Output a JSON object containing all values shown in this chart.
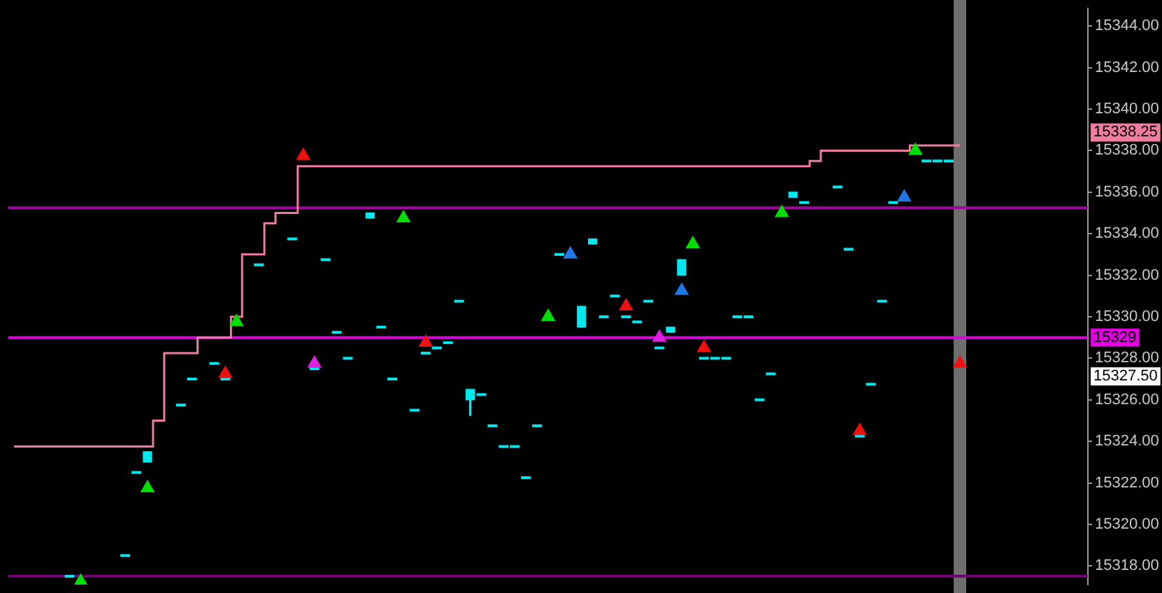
{
  "chart_data": {
    "type": "candlestick",
    "color": "#00e8f0",
    "tick_labels": "y",
    "legend": false,
    "grid": false,
    "categories": [
      null,
      null,
      null,
      null,
      null,
      null,
      null,
      null,
      null,
      null,
      null,
      null,
      null,
      null,
      null,
      null,
      null,
      null,
      null,
      null,
      null,
      null,
      null,
      null,
      null,
      null,
      null,
      null,
      null,
      null,
      null,
      null,
      null,
      null,
      null,
      null,
      null,
      null,
      null,
      null,
      null,
      null,
      null,
      null,
      null,
      null,
      null,
      null,
      null,
      null,
      null,
      null,
      null,
      null,
      null,
      null,
      null,
      null,
      null,
      null,
      null,
      null,
      null,
      null,
      null,
      null,
      null,
      null,
      null,
      null,
      null,
      null,
      null,
      null,
      null,
      null,
      null,
      null,
      null,
      null,
      null,
      null,
      null,
      null,
      null,
      null,
      null,
      null,
      null,
      null,
      null,
      null,
      null,
      null,
      null,
      null,
      null
    ],
    "ohlc": [
      null,
      null,
      null,
      null,
      null,
      [
        15317.5,
        15317.5,
        15317.5,
        15317.5
      ],
      null,
      null,
      null,
      null,
      [
        15318.5,
        15318.5,
        15318.5,
        15318.5
      ],
      [
        15322.5,
        15322.5,
        15322.5,
        15322.5
      ],
      [
        15323,
        15323.5,
        15323,
        15323.5
      ],
      null,
      null,
      [
        15325.75,
        15325.75,
        15325.75,
        15325.75
      ],
      [
        15327,
        15327,
        15327,
        15327
      ],
      null,
      [
        15327.75,
        15327.75,
        15327.75,
        15327.75
      ],
      [
        15327,
        15327,
        15327,
        15327
      ],
      null,
      null,
      [
        15332.5,
        15332.5,
        15332.5,
        15332.5
      ],
      null,
      null,
      [
        15333.75,
        15333.75,
        15333.75,
        15333.75
      ],
      null,
      [
        15327.5,
        15327.5,
        15327.5,
        15327.5
      ],
      [
        15332.75,
        15332.75,
        15332.75,
        15332.75
      ],
      [
        15329.25,
        15329.25,
        15329.25,
        15329.25
      ],
      [
        15328,
        15328,
        15328,
        15328
      ],
      null,
      [
        15334.75,
        15335,
        15334.75,
        15335
      ],
      [
        15329.5,
        15329.5,
        15329.5,
        15329.5
      ],
      [
        15327,
        15327,
        15327,
        15327
      ],
      null,
      [
        15325.5,
        15325.5,
        15325.5,
        15325.5
      ],
      [
        15328.25,
        15328.25,
        15328.25,
        15328.25
      ],
      [
        15328.5,
        15328.5,
        15328.5,
        15328.5
      ],
      [
        15328.75,
        15328.75,
        15328.75,
        15328.75
      ],
      [
        15330.75,
        15330.75,
        15330.75,
        15330.75
      ],
      [
        15326,
        15326.5,
        15325.25,
        15326.5
      ],
      [
        15326.25,
        15326.25,
        15326.25,
        15326.25
      ],
      [
        15324.75,
        15324.75,
        15324.75,
        15324.75
      ],
      [
        15323.75,
        15323.75,
        15323.75,
        15323.75
      ],
      [
        15323.75,
        15323.75,
        15323.75,
        15323.75
      ],
      [
        15322.25,
        15322.25,
        15322.25,
        15322.25
      ],
      [
        15324.75,
        15324.75,
        15324.75,
        15324.75
      ],
      null,
      [
        15333,
        15333,
        15333,
        15333
      ],
      null,
      [
        15329.5,
        15330.5,
        15329.5,
        15330.5
      ],
      [
        15333.5,
        15333.75,
        15333.5,
        15333.75
      ],
      [
        15330,
        15330,
        15330,
        15330
      ],
      [
        15331,
        15331,
        15331,
        15331
      ],
      [
        15330,
        15330,
        15330,
        15330
      ],
      [
        15329.75,
        15329.75,
        15329.75,
        15329.75
      ],
      [
        15330.75,
        15330.75,
        15330.75,
        15330.75
      ],
      [
        15328.5,
        15328.5,
        15328.5,
        15328.5
      ],
      [
        15329.25,
        15329.5,
        15329.25,
        15329.5
      ],
      [
        15332,
        15332.75,
        15332,
        15332.75
      ],
      null,
      [
        15328,
        15328,
        15328,
        15328
      ],
      [
        15328,
        15328,
        15328,
        15328
      ],
      [
        15328,
        15328,
        15328,
        15328
      ],
      [
        15330,
        15330,
        15330,
        15330
      ],
      [
        15330,
        15330,
        15330,
        15330
      ],
      [
        15326,
        15326,
        15326,
        15326
      ],
      [
        15327.25,
        15327.25,
        15327.25,
        15327.25
      ],
      null,
      [
        15335.75,
        15336,
        15335.75,
        15336
      ],
      [
        15335.5,
        15335.5,
        15335.5,
        15335.5
      ],
      null,
      null,
      [
        15336.25,
        15336.25,
        15336.25,
        15336.25
      ],
      [
        15333.25,
        15333.25,
        15333.25,
        15333.25
      ],
      [
        15324.25,
        15324.25,
        15324.25,
        15324.25
      ],
      [
        15326.75,
        15326.75,
        15326.75,
        15326.75
      ],
      [
        15330.75,
        15330.75,
        15330.75,
        15330.75
      ],
      [
        15335.5,
        15335.5,
        15335.5,
        15335.5
      ],
      null,
      null,
      [
        15337.5,
        15337.5,
        15337.5,
        15337.5
      ],
      [
        15337.5,
        15337.5,
        15337.5,
        15337.5
      ],
      [
        15337.5,
        15337.5,
        15337.5,
        15337.5
      ],
      null,
      null,
      null,
      null,
      null,
      null,
      null,
      null,
      null,
      null,
      null,
      null
    ],
    "series": [
      {
        "type": "step",
        "color": "#f07ca0",
        "values": [
          15323.75,
          15323.75,
          15323.75,
          15323.75,
          15323.75,
          15323.75,
          15323.75,
          15323.75,
          15323.75,
          15323.75,
          15323.75,
          15323.75,
          15323.75,
          15325,
          15328.25,
          15328.25,
          15328.25,
          15329,
          15329,
          15329,
          15330,
          15333,
          15333,
          15334.5,
          15335,
          15335,
          15337.25,
          15337.25,
          15337.25,
          15337.25,
          15337.25,
          15337.25,
          15337.25,
          15337.25,
          15337.25,
          15337.25,
          15337.25,
          15337.25,
          15337.25,
          15337.25,
          15337.25,
          15337.25,
          15337.25,
          15337.25,
          15337.25,
          15337.25,
          15337.25,
          15337.25,
          15337.25,
          15337.25,
          15337.25,
          15337.25,
          15337.25,
          15337.25,
          15337.25,
          15337.25,
          15337.25,
          15337.25,
          15337.25,
          15337.25,
          15337.25,
          15337.25,
          15337.25,
          15337.25,
          15337.25,
          15337.25,
          15337.25,
          15337.25,
          15337.25,
          15337.25,
          15337.25,
          15337.25,
          15337.5,
          15338,
          15338,
          15338,
          15338,
          15338,
          15338,
          15338,
          15338,
          15338.25,
          15338.25,
          15338.25,
          15338.25,
          15338.25,
          null,
          null,
          null,
          null,
          null,
          null,
          null,
          null,
          null,
          null,
          null
        ]
      },
      {
        "type": "scatter",
        "marker": "triangle",
        "color": "#00e000",
        "values": [
          null,
          null,
          null,
          null,
          null,
          null,
          15317.25,
          null,
          null,
          null,
          null,
          null,
          15321.75,
          null,
          null,
          null,
          null,
          null,
          null,
          null,
          15329.75,
          null,
          null,
          null,
          null,
          null,
          null,
          null,
          null,
          null,
          null,
          null,
          null,
          null,
          null,
          15334.75,
          null,
          null,
          null,
          null,
          null,
          null,
          null,
          null,
          null,
          null,
          null,
          null,
          15330,
          null,
          null,
          null,
          null,
          null,
          null,
          null,
          null,
          null,
          null,
          null,
          null,
          15333.5,
          null,
          null,
          null,
          null,
          null,
          null,
          null,
          15335,
          null,
          null,
          null,
          null,
          null,
          null,
          null,
          null,
          null,
          null,
          null,
          15338,
          null,
          null,
          null,
          null,
          null,
          null,
          null,
          null,
          null,
          null,
          null,
          null,
          null,
          null,
          null
        ]
      },
      {
        "type": "scatter",
        "marker": "triangle",
        "color": "#1e78e6",
        "values": [
          null,
          null,
          null,
          null,
          null,
          null,
          null,
          null,
          null,
          null,
          null,
          null,
          null,
          null,
          null,
          null,
          null,
          null,
          null,
          null,
          null,
          null,
          null,
          null,
          null,
          null,
          null,
          null,
          null,
          null,
          null,
          null,
          null,
          null,
          null,
          null,
          null,
          null,
          null,
          null,
          null,
          null,
          null,
          null,
          null,
          null,
          null,
          null,
          null,
          null,
          15333,
          null,
          null,
          null,
          null,
          null,
          null,
          null,
          null,
          null,
          15331.25,
          null,
          null,
          null,
          null,
          null,
          null,
          null,
          null,
          null,
          null,
          null,
          null,
          null,
          null,
          null,
          null,
          null,
          null,
          null,
          15335.75,
          null,
          null,
          null,
          null,
          null,
          null,
          null,
          null,
          null,
          null,
          null,
          null,
          null,
          null,
          null,
          null
        ]
      },
      {
        "type": "scatter",
        "marker": "triangle",
        "color": "#f01010",
        "values": [
          null,
          null,
          null,
          null,
          null,
          null,
          null,
          null,
          null,
          null,
          null,
          null,
          null,
          null,
          null,
          null,
          null,
          null,
          null,
          15327.25,
          null,
          null,
          null,
          null,
          null,
          null,
          15337.75,
          null,
          null,
          null,
          null,
          null,
          null,
          null,
          null,
          null,
          null,
          15328.75,
          null,
          null,
          null,
          null,
          null,
          null,
          null,
          null,
          null,
          null,
          null,
          null,
          null,
          null,
          null,
          null,
          null,
          15330.5,
          null,
          null,
          null,
          null,
          null,
          null,
          15328.5,
          null,
          null,
          null,
          null,
          null,
          null,
          null,
          null,
          null,
          null,
          null,
          null,
          null,
          15324.5,
          null,
          null,
          null,
          null,
          null,
          null,
          null,
          null,
          15327.75,
          null,
          null,
          null,
          null,
          null,
          null,
          null,
          null,
          null,
          null,
          null
        ]
      },
      {
        "type": "scatter",
        "marker": "triangle",
        "color": "#e020e0",
        "values": [
          null,
          null,
          null,
          null,
          null,
          null,
          null,
          null,
          null,
          null,
          null,
          null,
          null,
          null,
          null,
          null,
          null,
          null,
          null,
          null,
          null,
          null,
          null,
          null,
          null,
          null,
          null,
          15327.75,
          null,
          null,
          null,
          null,
          null,
          null,
          null,
          null,
          null,
          null,
          null,
          null,
          null,
          null,
          null,
          null,
          null,
          null,
          null,
          null,
          null,
          null,
          null,
          null,
          null,
          null,
          null,
          null,
          null,
          null,
          15329,
          null,
          null,
          null,
          null,
          null,
          null,
          null,
          null,
          null,
          null,
          null,
          null,
          null,
          null,
          null,
          null,
          null,
          null,
          null,
          null,
          null,
          null,
          null,
          null,
          null,
          null,
          null,
          null,
          null,
          null,
          null,
          null,
          null,
          null,
          null,
          null,
          null,
          null
        ]
      }
    ],
    "ylim": [
      15317.1,
      15344.85
    ],
    "yticks": [
      {
        "value": 15318,
        "label": "15318.00"
      },
      {
        "value": 15320,
        "label": "15320.00"
      },
      {
        "value": 15322,
        "label": "15322.00"
      },
      {
        "value": 15324,
        "label": "15324.00"
      },
      {
        "value": 15326,
        "label": "15326.00"
      },
      {
        "value": 15328,
        "label": "15328.00"
      },
      {
        "value": 15330,
        "label": "15330.00"
      },
      {
        "value": 15332,
        "label": "15332.00"
      },
      {
        "value": 15334,
        "label": "15334.00"
      },
      {
        "value": 15336,
        "label": "15336.00"
      },
      {
        "value": 15338,
        "label": "15338.00"
      },
      {
        "value": 15340,
        "label": "15340.00"
      },
      {
        "value": 15342,
        "label": "15342.00"
      },
      {
        "value": 15344,
        "label": "15344.00"
      }
    ],
    "ref_lines": [
      {
        "axis": "y",
        "value": 15335.25,
        "color": "#a000a0"
      },
      {
        "axis": "y",
        "value": 15329,
        "label": "15329",
        "color": "#e000e0"
      },
      {
        "axis": "y",
        "value": 15317.5,
        "color": "#700070"
      }
    ],
    "annotations": [
      "15338.25",
      "15327.50"
    ]
  }
}
